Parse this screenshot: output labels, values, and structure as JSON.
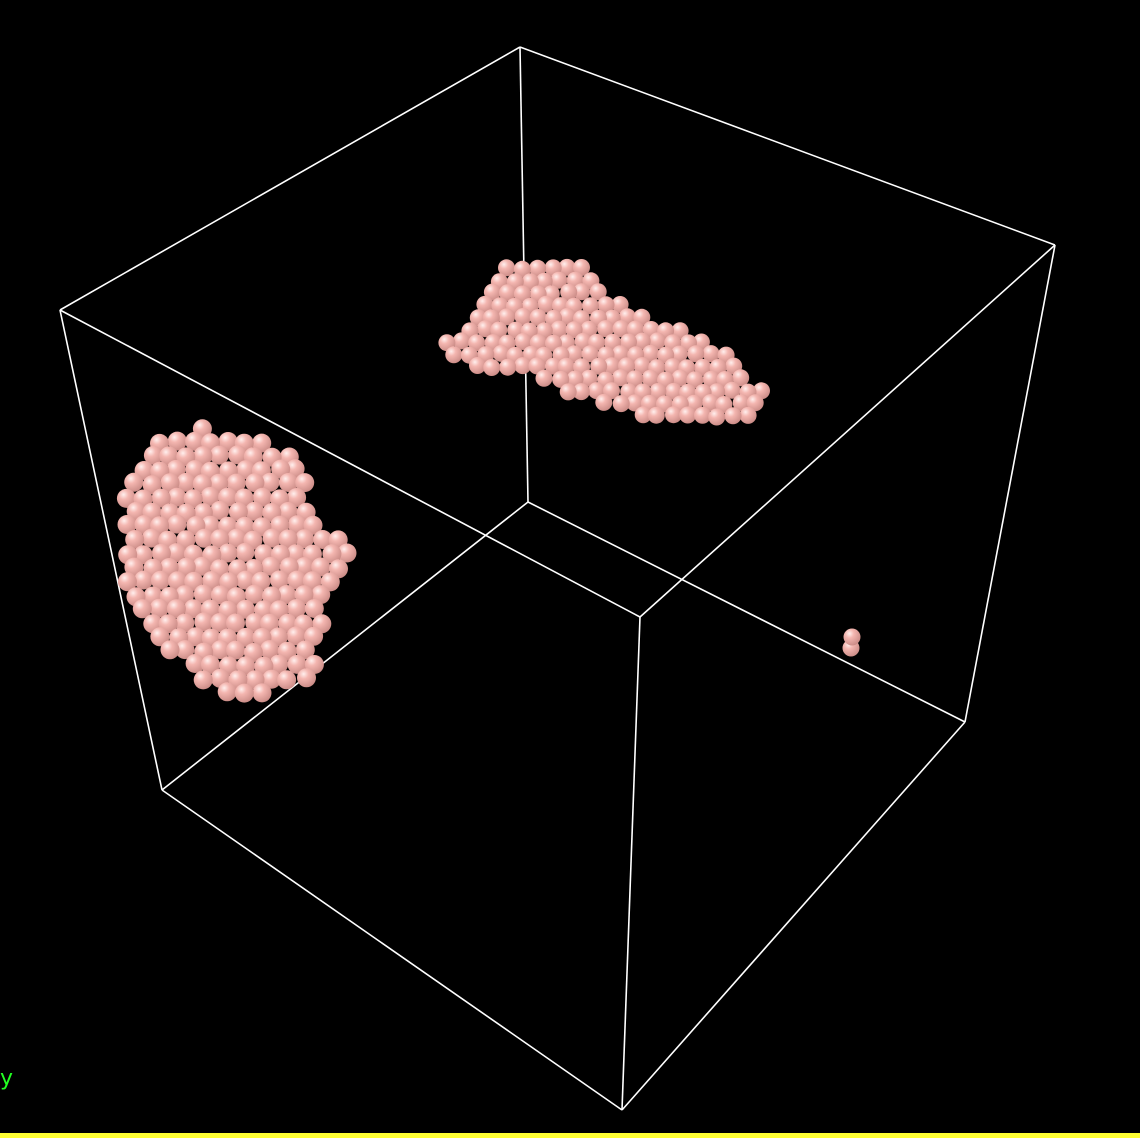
{
  "scene": {
    "background": "#000000",
    "box_edge_color": "#ffffff",
    "atom_color": "#f4b6b0",
    "atom_shadow_color": "#c98a85",
    "atom_highlight_color": "#fff0ee"
  },
  "overlay": {
    "axis_label": "y",
    "axis_label_color": "#22ff22",
    "bottom_strip_color": "#ffff33"
  }
}
